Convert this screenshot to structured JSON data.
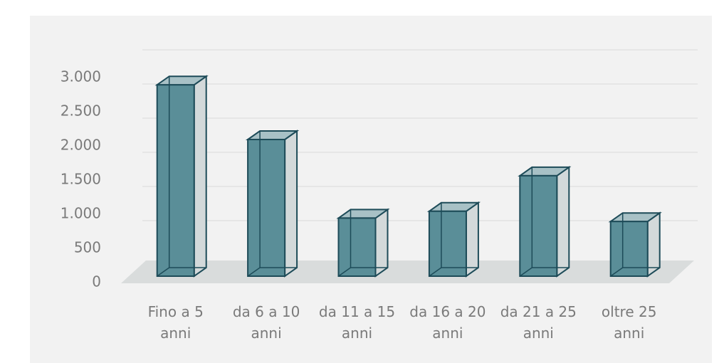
{
  "chart_data": {
    "type": "bar3d",
    "categories": [
      "Fino a 5 anni",
      "da 6 a 10 anni",
      "da 11 a 15 anni",
      "da 16 a 20 anni",
      "da 21 a 25 anni",
      "oltre 25 anni"
    ],
    "values": [
      2800,
      2000,
      850,
      950,
      1470,
      800
    ],
    "color": "#5a8e98",
    "ylim": [
      0,
      3000
    ],
    "yticks": [
      0,
      {
        "value": 500,
        "label": "500"
      },
      {
        "value": 1000,
        "label": "1.000"
      },
      {
        "value": 1500,
        "label": "1.500"
      },
      {
        "value": 2000,
        "label": "2.000"
      },
      {
        "value": 2500,
        "label": "2.500"
      },
      {
        "value": 3000,
        "label": "3.000"
      }
    ],
    "grid": true
  }
}
